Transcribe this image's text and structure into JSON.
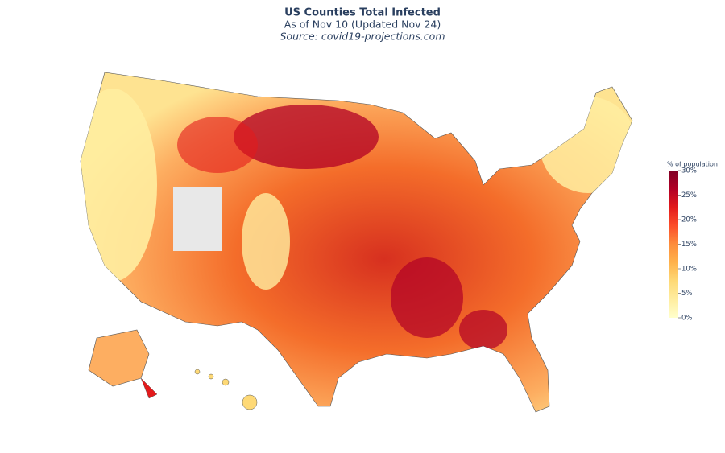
{
  "title": "US Counties Total Infected",
  "subtitle": "As of Nov 10 (Updated Nov 24)",
  "source": "Source: covid19-projections.com",
  "colorbar": {
    "title": "% of population",
    "range": [
      0,
      30
    ],
    "ticks": [
      {
        "value": 0,
        "label": "0%"
      },
      {
        "value": 5,
        "label": "5%"
      },
      {
        "value": 10,
        "label": "10%"
      },
      {
        "value": 15,
        "label": "15%"
      },
      {
        "value": 20,
        "label": "20%"
      },
      {
        "value": 25,
        "label": "25%"
      },
      {
        "value": 30,
        "label": "30%"
      }
    ],
    "colors": [
      "#ffffcc",
      "#ffeda0",
      "#fed976",
      "#feb24c",
      "#fd8d3c",
      "#fc4e2a",
      "#e31a1c",
      "#b10026",
      "#800026"
    ]
  }
}
